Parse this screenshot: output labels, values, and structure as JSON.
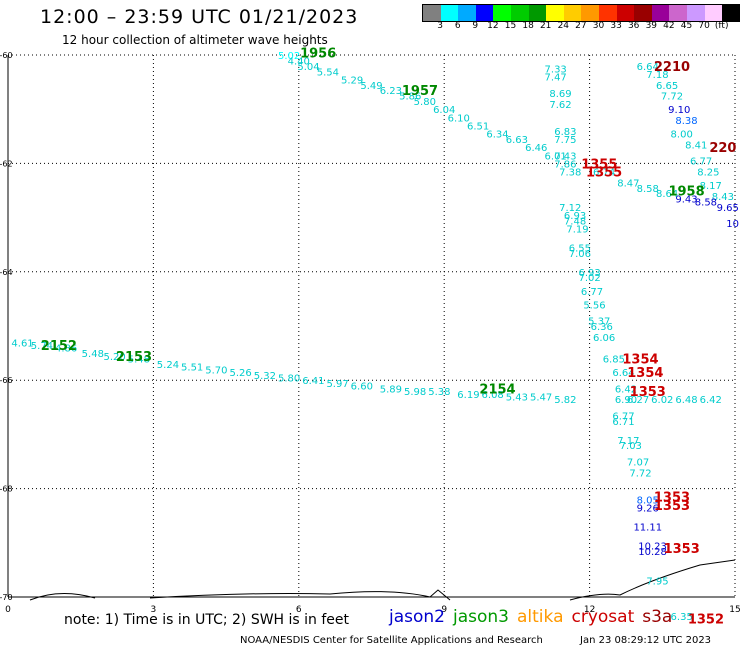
{
  "header": {
    "title": "12:00 – 23:59 UTC 01/21/2023",
    "subtitle": "12 hour collection of altimeter wave heights"
  },
  "color_scale": {
    "colors": [
      "#808080",
      "#00ffff",
      "#00aaff",
      "#0000ff",
      "#00ff00",
      "#00cc00",
      "#009900",
      "#ffff00",
      "#ffcc00",
      "#ff9900",
      "#ff3300",
      "#cc0000",
      "#990000",
      "#990099",
      "#cc66cc",
      "#cc99ff",
      "#ffccff",
      "#000000"
    ],
    "labels": [
      "3",
      "6",
      "9",
      "12",
      "15",
      "18",
      "21",
      "24",
      "27",
      "30",
      "33",
      "36",
      "39",
      "42",
      "45",
      "70",
      "(ft)"
    ],
    "unit": "(ft)"
  },
  "axes": {
    "y_labels": [
      {
        "text": "-60",
        "lat": -60
      },
      {
        "text": "-62",
        "lat": -62
      },
      {
        "text": "-64",
        "lat": -64
      },
      {
        "text": "-66",
        "lat": -66
      },
      {
        "text": "-68",
        "lat": -68
      },
      {
        "text": "-70",
        "lat": -70
      }
    ],
    "x_labels": [
      {
        "text": "0",
        "lon": 0
      },
      {
        "text": "3",
        "lon": 3
      },
      {
        "text": "6",
        "lon": 6
      },
      {
        "text": "9",
        "lon": 9
      },
      {
        "text": "12",
        "lon": 12
      },
      {
        "text": "15",
        "lon": 15
      }
    ],
    "x_range": [
      0,
      15
    ],
    "y_range": [
      -60,
      -70
    ]
  },
  "track_labels": [
    {
      "text": "5.02",
      "lon": 5.8,
      "lat": -60.0,
      "color": "#00ffff"
    },
    {
      "text": "4.40",
      "lon": 6.0,
      "lat": -60.1,
      "color": "#00cccc"
    },
    {
      "text": "5.04",
      "lon": 6.2,
      "lat": -60.2,
      "color": "#00cccc"
    },
    {
      "text": "5.54",
      "lon": 6.6,
      "lat": -60.3,
      "color": "#00cccc"
    },
    {
      "text": "5.29",
      "lon": 7.1,
      "lat": -60.45,
      "color": "#00cccc"
    },
    {
      "text": "5.49",
      "lon": 7.5,
      "lat": -60.55,
      "color": "#00cccc"
    },
    {
      "text": "6.23",
      "lon": 7.9,
      "lat": -60.65,
      "color": "#00cccc"
    },
    {
      "text": "5.86",
      "lon": 8.3,
      "lat": -60.75,
      "color": "#00cccc"
    },
    {
      "text": "5.80",
      "lon": 8.6,
      "lat": -60.85,
      "color": "#00cccc"
    },
    {
      "text": "6.04",
      "lon": 9.0,
      "lat": -61.0,
      "color": "#00cccc"
    },
    {
      "text": "6.10",
      "lon": 9.3,
      "lat": -61.15,
      "color": "#00cccc"
    },
    {
      "text": "6.51",
      "lon": 9.7,
      "lat": -61.3,
      "color": "#00cccc"
    },
    {
      "text": "6.34",
      "lon": 10.1,
      "lat": -61.45,
      "color": "#00cccc"
    },
    {
      "text": "6.63",
      "lon": 10.5,
      "lat": -61.55,
      "color": "#00cccc"
    },
    {
      "text": "6.46",
      "lon": 10.9,
      "lat": -61.7,
      "color": "#00cccc"
    },
    {
      "text": "6.01",
      "lon": 11.3,
      "lat": -61.85,
      "color": "#00cccc"
    },
    {
      "text": "7.33",
      "lon": 11.3,
      "lat": -60.25,
      "color": "#00cccc"
    },
    {
      "text": "7.47",
      "lon": 11.3,
      "lat": -60.4,
      "color": "#00cccc"
    },
    {
      "text": "8.69",
      "lon": 11.4,
      "lat": -60.7,
      "color": "#00cccc"
    },
    {
      "text": "7.62",
      "lon": 11.4,
      "lat": -60.9,
      "color": "#00cccc"
    },
    {
      "text": "6.83",
      "lon": 11.5,
      "lat": -61.4,
      "color": "#00cccc"
    },
    {
      "text": "7.75",
      "lon": 11.5,
      "lat": -61.55,
      "color": "#00cccc"
    },
    {
      "text": "7.43",
      "lon": 11.5,
      "lat": -61.85,
      "color": "#00cccc"
    },
    {
      "text": "7.86",
      "lon": 11.5,
      "lat": -62.0,
      "color": "#00cccc"
    },
    {
      "text": "7.38",
      "lon": 11.6,
      "lat": -62.15,
      "color": "#00cccc"
    },
    {
      "text": "6.74",
      "lon": 12.3,
      "lat": -62.15,
      "color": "#00cccc"
    },
    {
      "text": "7.12",
      "lon": 11.6,
      "lat": -62.8,
      "color": "#00cccc"
    },
    {
      "text": "6.93",
      "lon": 11.7,
      "lat": -62.95,
      "color": "#00cccc"
    },
    {
      "text": "7.48",
      "lon": 11.7,
      "lat": -63.05,
      "color": "#00cccc"
    },
    {
      "text": "7.19",
      "lon": 11.75,
      "lat": -63.2,
      "color": "#00cccc"
    },
    {
      "text": "6.55",
      "lon": 11.8,
      "lat": -63.55,
      "color": "#00cccc"
    },
    {
      "text": "7.06",
      "lon": 11.8,
      "lat": -63.65,
      "color": "#00cccc"
    },
    {
      "text": "6.93",
      "lon": 12.0,
      "lat": -64.0,
      "color": "#00cccc"
    },
    {
      "text": "7.02",
      "lon": 12.0,
      "lat": -64.1,
      "color": "#00cccc"
    },
    {
      "text": "6.77",
      "lon": 12.05,
      "lat": -64.35,
      "color": "#00cccc"
    },
    {
      "text": "5.56",
      "lon": 12.1,
      "lat": -64.6,
      "color": "#00cccc"
    },
    {
      "text": "5.37",
      "lon": 12.2,
      "lat": -64.9,
      "color": "#00cccc"
    },
    {
      "text": "6.36",
      "lon": 12.25,
      "lat": -65.0,
      "color": "#00cccc"
    },
    {
      "text": "6.06",
      "lon": 12.3,
      "lat": -65.2,
      "color": "#00cccc"
    },
    {
      "text": "6.85",
      "lon": 12.5,
      "lat": -65.6,
      "color": "#00cccc"
    },
    {
      "text": "6.64",
      "lon": 12.7,
      "lat": -65.85,
      "color": "#00cccc"
    },
    {
      "text": "6.42",
      "lon": 12.75,
      "lat": -66.15,
      "color": "#00cccc"
    },
    {
      "text": "6.90",
      "lon": 12.75,
      "lat": -66.35,
      "color": "#00cccc"
    },
    {
      "text": "6.77",
      "lon": 12.7,
      "lat": -66.65,
      "color": "#00cccc"
    },
    {
      "text": "6.71",
      "lon": 12.7,
      "lat": -66.75,
      "color": "#00cccc"
    },
    {
      "text": "7.17",
      "lon": 12.8,
      "lat": -67.1,
      "color": "#00cccc"
    },
    {
      "text": "7.03",
      "lon": 12.85,
      "lat": -67.2,
      "color": "#00cccc"
    },
    {
      "text": "7.07",
      "lon": 13.0,
      "lat": -67.5,
      "color": "#00cccc"
    },
    {
      "text": "7.72",
      "lon": 13.05,
      "lat": -67.7,
      "color": "#00cccc"
    },
    {
      "text": "8.05",
      "lon": 13.2,
      "lat": -68.2,
      "color": "#0066ff"
    },
    {
      "text": "9.26",
      "lon": 13.2,
      "lat": -68.35,
      "color": "#0000cc"
    },
    {
      "text": "11.11",
      "lon": 13.2,
      "lat": -68.7,
      "color": "#0000cc"
    },
    {
      "text": "10.23",
      "lon": 13.3,
      "lat": -69.05,
      "color": "#0000cc"
    },
    {
      "text": "10.28",
      "lon": 13.3,
      "lat": -69.15,
      "color": "#0000cc"
    },
    {
      "text": "7.95",
      "lon": 13.4,
      "lat": -69.7,
      "color": "#00cccc"
    },
    {
      "text": "6.35",
      "lon": 13.9,
      "lat": -70.35,
      "color": "#00cccc"
    },
    {
      "text": "6.64",
      "lon": 13.2,
      "lat": -60.2,
      "color": "#00cccc"
    },
    {
      "text": "7.18",
      "lon": 13.4,
      "lat": -60.35,
      "color": "#00cccc"
    },
    {
      "text": "6.65",
      "lon": 13.6,
      "lat": -60.55,
      "color": "#00cccc"
    },
    {
      "text": "7.72",
      "lon": 13.7,
      "lat": -60.75,
      "color": "#00cccc"
    },
    {
      "text": "9.10",
      "lon": 13.85,
      "lat": -61.0,
      "color": "#0000cc"
    },
    {
      "text": "8.38",
      "lon": 14.0,
      "lat": -61.2,
      "color": "#0066ff"
    },
    {
      "text": "8.00",
      "lon": 13.9,
      "lat": -61.45,
      "color": "#00cccc"
    },
    {
      "text": "8.41",
      "lon": 14.2,
      "lat": -61.65,
      "color": "#00cccc"
    },
    {
      "text": "6.77",
      "lon": 14.3,
      "lat": -61.95,
      "color": "#00cccc"
    },
    {
      "text": "8.25",
      "lon": 14.45,
      "lat": -62.15,
      "color": "#00cccc"
    },
    {
      "text": "8.17",
      "lon": 14.5,
      "lat": -62.4,
      "color": "#00cccc"
    },
    {
      "text": "8.43",
      "lon": 14.75,
      "lat": -62.6,
      "color": "#00cccc"
    },
    {
      "text": "9.43",
      "lon": 14.0,
      "lat": -62.65,
      "color": "#0000cc"
    },
    {
      "text": "8.58",
      "lon": 14.4,
      "lat": -62.7,
      "color": "#0000cc"
    },
    {
      "text": "9.65",
      "lon": 14.85,
      "lat": -62.8,
      "color": "#0000cc"
    },
    {
      "text": "10",
      "lon": 14.95,
      "lat": -63.1,
      "color": "#0000cc"
    },
    {
      "text": "8.47",
      "lon": 12.8,
      "lat": -62.35,
      "color": "#00cccc"
    },
    {
      "text": "8.58",
      "lon": 13.2,
      "lat": -62.45,
      "color": "#00cccc"
    },
    {
      "text": "8.64",
      "lon": 13.6,
      "lat": -62.55,
      "color": "#00cccc"
    },
    {
      "text": "4.61",
      "lon": 0.3,
      "lat": -65.3,
      "color": "#00cccc"
    },
    {
      "text": "5.74",
      "lon": 0.7,
      "lat": -65.35,
      "color": "#00cccc"
    },
    {
      "text": "4.86",
      "lon": 1.2,
      "lat": -65.4,
      "color": "#00cccc"
    },
    {
      "text": "5.48",
      "lon": 1.75,
      "lat": -65.5,
      "color": "#00cccc"
    },
    {
      "text": "5.20",
      "lon": 2.2,
      "lat": -65.55,
      "color": "#00cccc"
    },
    {
      "text": "5.48",
      "lon": 2.7,
      "lat": -65.6,
      "color": "#00cccc"
    },
    {
      "text": "5.24",
      "lon": 3.3,
      "lat": -65.7,
      "color": "#00cccc"
    },
    {
      "text": "5.51",
      "lon": 3.8,
      "lat": -65.75,
      "color": "#00cccc"
    },
    {
      "text": "5.70",
      "lon": 4.3,
      "lat": -65.8,
      "color": "#00cccc"
    },
    {
      "text": "5.26",
      "lon": 4.8,
      "lat": -65.85,
      "color": "#00cccc"
    },
    {
      "text": "5.32",
      "lon": 5.3,
      "lat": -65.9,
      "color": "#00cccc"
    },
    {
      "text": "5.80",
      "lon": 5.8,
      "lat": -65.95,
      "color": "#00cccc"
    },
    {
      "text": "6.41",
      "lon": 6.3,
      "lat": -66.0,
      "color": "#00cccc"
    },
    {
      "text": "5.97",
      "lon": 6.8,
      "lat": -66.05,
      "color": "#00cccc"
    },
    {
      "text": "6.60",
      "lon": 7.3,
      "lat": -66.1,
      "color": "#00cccc"
    },
    {
      "text": "5.89",
      "lon": 7.9,
      "lat": -66.15,
      "color": "#00cccc"
    },
    {
      "text": "5.98",
      "lon": 8.4,
      "lat": -66.2,
      "color": "#00cccc"
    },
    {
      "text": "5.38",
      "lon": 8.9,
      "lat": -66.2,
      "color": "#00cccc"
    },
    {
      "text": "6.19",
      "lon": 9.5,
      "lat": -66.25,
      "color": "#00cccc"
    },
    {
      "text": "6.08",
      "lon": 10.0,
      "lat": -66.25,
      "color": "#00cccc"
    },
    {
      "text": "5.43",
      "lon": 10.5,
      "lat": -66.3,
      "color": "#00cccc"
    },
    {
      "text": "5.47",
      "lon": 11.0,
      "lat": -66.3,
      "color": "#00cccc"
    },
    {
      "text": "5.82",
      "lon": 11.5,
      "lat": -66.35,
      "color": "#00cccc"
    },
    {
      "text": "6.27",
      "lon": 13.0,
      "lat": -66.35,
      "color": "#00cccc"
    },
    {
      "text": "6.02",
      "lon": 13.5,
      "lat": -66.35,
      "color": "#00cccc"
    },
    {
      "text": "6.48",
      "lon": 14.0,
      "lat": -66.35,
      "color": "#00cccc"
    },
    {
      "text": "6.42",
      "lon": 14.5,
      "lat": -66.35,
      "color": "#00cccc"
    }
  ],
  "time_labels": [
    {
      "text": "1956",
      "lon": 6.4,
      "lat": -59.95,
      "color": "#008800"
    },
    {
      "text": "1957",
      "lon": 8.5,
      "lat": -60.65,
      "color": "#008800"
    },
    {
      "text": "2210",
      "lon": 13.7,
      "lat": -60.2,
      "color": "#990000"
    },
    {
      "text": "220",
      "lon": 14.75,
      "lat": -61.7,
      "color": "#990000"
    },
    {
      "text": "1355",
      "lon": 12.2,
      "lat": -62.0,
      "color": "#cc0000"
    },
    {
      "text": "1355",
      "lon": 12.3,
      "lat": -62.15,
      "color": "#cc0000"
    },
    {
      "text": "1958",
      "lon": 14.0,
      "lat": -62.5,
      "color": "#008800"
    },
    {
      "text": "2152",
      "lon": 1.05,
      "lat": -65.35,
      "color": "#008800"
    },
    {
      "text": "2153",
      "lon": 2.6,
      "lat": -65.55,
      "color": "#008800"
    },
    {
      "text": "2154",
      "lon": 10.1,
      "lat": -66.15,
      "color": "#008800"
    },
    {
      "text": "1354",
      "lon": 13.05,
      "lat": -65.6,
      "color": "#cc0000"
    },
    {
      "text": "1354",
      "lon": 13.15,
      "lat": -65.85,
      "color": "#cc0000"
    },
    {
      "text": "1353",
      "lon": 13.2,
      "lat": -66.2,
      "color": "#cc0000"
    },
    {
      "text": "1353",
      "lon": 13.7,
      "lat": -68.15,
      "color": "#cc0000"
    },
    {
      "text": "1353",
      "lon": 13.7,
      "lat": -68.3,
      "color": "#cc0000"
    },
    {
      "text": "1353",
      "lon": 13.9,
      "lat": -69.1,
      "color": "#cc0000"
    },
    {
      "text": "1352",
      "lon": 14.4,
      "lat": -70.4,
      "color": "#cc0000"
    }
  ],
  "footer": {
    "note": "note: 1) Time is in UTC; 2) SWH is in feet",
    "satellites": [
      {
        "name": "jason2",
        "color": "#0000cc"
      },
      {
        "name": "jason3",
        "color": "#009900"
      },
      {
        "name": "altika",
        "color": "#ff9900"
      },
      {
        "name": "cryosat",
        "color": "#cc0000"
      },
      {
        "name": "s3a",
        "color": "#990000"
      }
    ],
    "credit": "NOAA/NESDIS Center for Satellite Applications and Research",
    "timestamp": "Jan 23 08:29:12 UTC 2023"
  }
}
